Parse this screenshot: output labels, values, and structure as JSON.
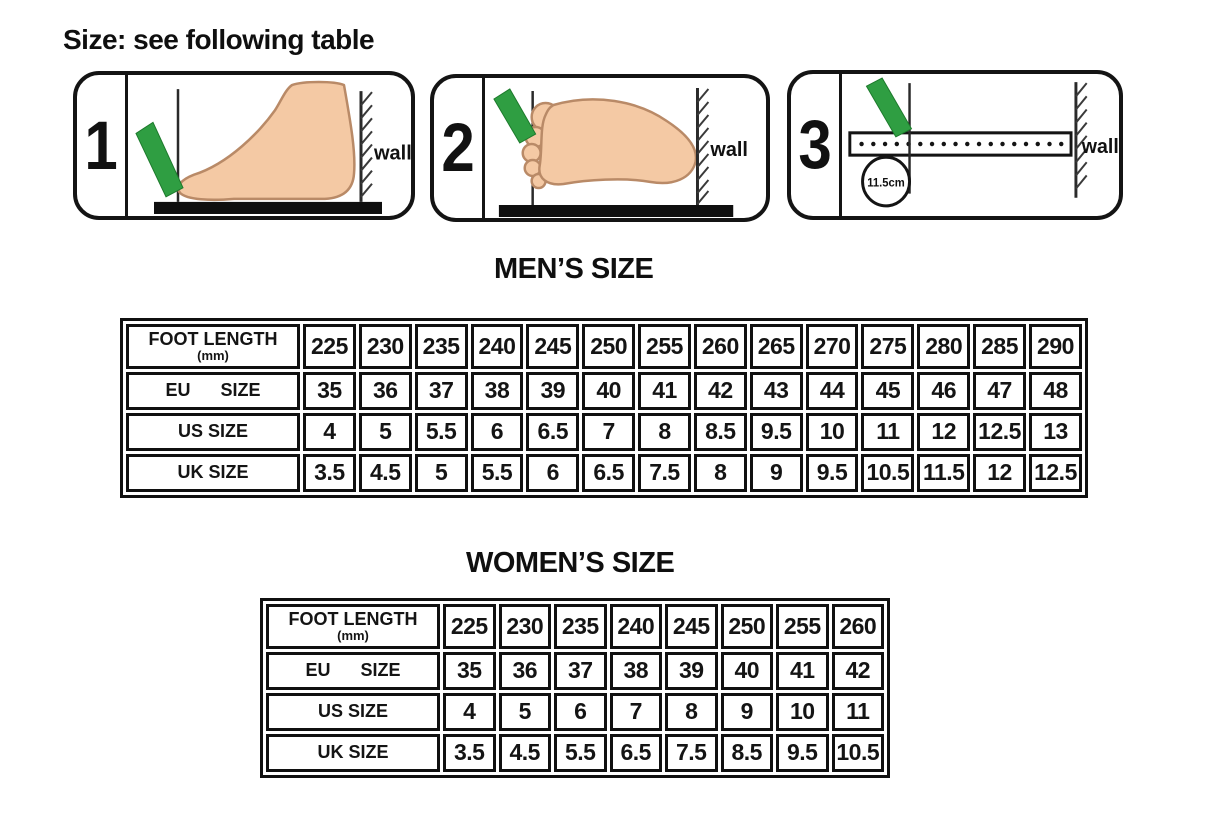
{
  "title": "Size: see following table",
  "steps": [
    {
      "number": "1",
      "wall_label": "wall"
    },
    {
      "number": "2",
      "wall_label": "wall"
    },
    {
      "number": "3",
      "wall_label": "wall",
      "measure_label": "11.5cm"
    }
  ],
  "mens": {
    "heading": "MEN’S SIZE",
    "rows": [
      {
        "label": "FOOT LENGTH",
        "sublabel": "(mm)",
        "values": [
          "225",
          "230",
          "235",
          "240",
          "245",
          "250",
          "255",
          "260",
          "265",
          "270",
          "275",
          "280",
          "285",
          "290"
        ]
      },
      {
        "label": "EU      SIZE",
        "values": [
          "35",
          "36",
          "37",
          "38",
          "39",
          "40",
          "41",
          "42",
          "43",
          "44",
          "45",
          "46",
          "47",
          "48"
        ]
      },
      {
        "label": "US SIZE",
        "values": [
          "4",
          "5",
          "5.5",
          "6",
          "6.5",
          "7",
          "8",
          "8.5",
          "9.5",
          "10",
          "11",
          "12",
          "12.5",
          "13"
        ]
      },
      {
        "label": "UK SIZE",
        "values": [
          "3.5",
          "4.5",
          "5",
          "5.5",
          "6",
          "6.5",
          "7.5",
          "8",
          "9",
          "9.5",
          "10.5",
          "11.5",
          "12",
          "12.5"
        ]
      }
    ]
  },
  "womens": {
    "heading": "WOMEN’S SIZE",
    "rows": [
      {
        "label": "FOOT LENGTH",
        "sublabel": "(mm)",
        "values": [
          "225",
          "230",
          "235",
          "240",
          "245",
          "250",
          "255",
          "260"
        ]
      },
      {
        "label": "EU      SIZE",
        "values": [
          "35",
          "36",
          "37",
          "38",
          "39",
          "40",
          "41",
          "42"
        ]
      },
      {
        "label": "US SIZE",
        "values": [
          "4",
          "5",
          "6",
          "7",
          "8",
          "9",
          "10",
          "11"
        ]
      },
      {
        "label": "UK SIZE",
        "values": [
          "3.5",
          "4.5",
          "5.5",
          "6.5",
          "7.5",
          "8.5",
          "9.5",
          "10.5"
        ]
      }
    ]
  },
  "colors": {
    "marker_green": "#2f9e42",
    "skin": "#f4c9a4",
    "skin_outline": "#b98a67",
    "line_black": "#141414"
  }
}
